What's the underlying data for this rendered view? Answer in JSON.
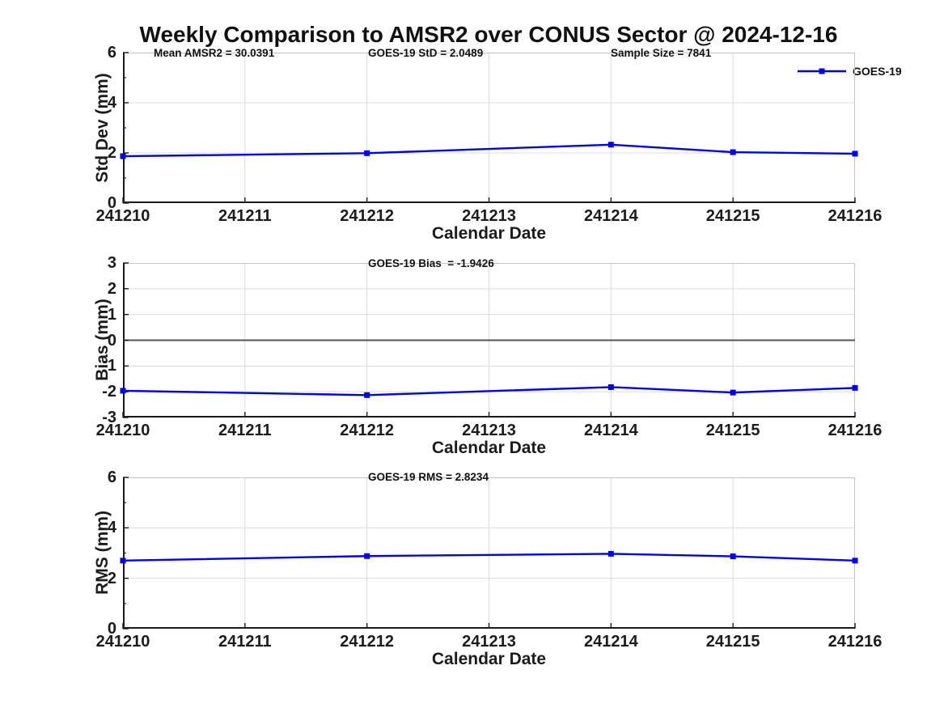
{
  "title": "Weekly Comparison to AMSR2 over CONUS Sector @ 2024-12-16",
  "legend": {
    "label": "GOES-19"
  },
  "colors": {
    "line": "#0000EE",
    "marker": "#0000EE",
    "grid": "#DBDBDB",
    "border": "#C4C4C4",
    "axis": "#1A1A1A",
    "zero_line": "#555555",
    "background": "#FFFFFF",
    "text": "#1A1A1A"
  },
  "chart_data": [
    {
      "type": "line",
      "id": "std-dev",
      "ylabel": "Std Dev (mm)",
      "xlabel": "Calendar Date",
      "xticks": [
        "241210",
        "241211",
        "241212",
        "241213",
        "241214",
        "241215",
        "241216"
      ],
      "yticks": [
        0,
        2,
        4,
        6
      ],
      "minor_yticks": [
        1,
        3,
        5
      ],
      "ylim": [
        0,
        6
      ],
      "grid": true,
      "zero_line": false,
      "annotations": [
        "Mean AMSR2 = 30.0391",
        "GOES-19 StD = 2.0489",
        "Sample Size = 7841"
      ],
      "series": [
        {
          "name": "GOES-19",
          "x": [
            241210,
            241212,
            241214,
            241215,
            241216
          ],
          "values": [
            1.87,
            1.99,
            2.33,
            2.03,
            1.97
          ]
        }
      ]
    },
    {
      "type": "line",
      "id": "bias",
      "ylabel": "Bias (mm)",
      "xlabel": "Calendar Date",
      "xticks": [
        "241210",
        "241211",
        "241212",
        "241213",
        "241214",
        "241215",
        "241216"
      ],
      "yticks": [
        -3,
        -2,
        -1,
        0,
        1,
        2,
        3
      ],
      "minor_yticks": [],
      "ylim": [
        -3,
        3
      ],
      "grid": true,
      "zero_line": true,
      "annotations": [
        "GOES-19 Bias  = -1.9426"
      ],
      "series": [
        {
          "name": "GOES-19",
          "x": [
            241210,
            241212,
            241214,
            241215,
            241216
          ],
          "values": [
            -1.96,
            -2.13,
            -1.82,
            -2.03,
            -1.85
          ]
        }
      ]
    },
    {
      "type": "line",
      "id": "rms",
      "ylabel": "RMS (mm)",
      "xlabel": "Calendar Date",
      "xticks": [
        "241210",
        "241211",
        "241212",
        "241213",
        "241214",
        "241215",
        "241216"
      ],
      "yticks": [
        0,
        2,
        4,
        6
      ],
      "minor_yticks": [
        1,
        3,
        5
      ],
      "ylim": [
        0,
        6
      ],
      "grid": true,
      "zero_line": false,
      "annotations": [
        "GOES-19 RMS = 2.8234"
      ],
      "series": [
        {
          "name": "GOES-19",
          "x": [
            241210,
            241212,
            241214,
            241215,
            241216
          ],
          "values": [
            2.7,
            2.88,
            2.97,
            2.87,
            2.7
          ]
        }
      ]
    }
  ]
}
